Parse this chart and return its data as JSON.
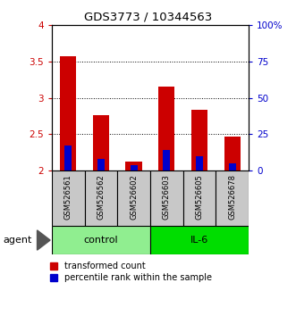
{
  "title": "GDS3773 / 10344563",
  "samples": [
    "GSM526561",
    "GSM526562",
    "GSM526602",
    "GSM526603",
    "GSM526605",
    "GSM526678"
  ],
  "red_bar_top": [
    3.58,
    2.76,
    2.12,
    3.16,
    2.84,
    2.47
  ],
  "red_bar_bottom": [
    2.0,
    2.0,
    2.0,
    2.0,
    2.0,
    2.0
  ],
  "blue_bar_top": [
    2.35,
    2.16,
    2.08,
    2.28,
    2.2,
    2.1
  ],
  "blue_bar_bottom": [
    2.0,
    2.0,
    2.0,
    2.0,
    2.0,
    2.0
  ],
  "ylim": [
    2.0,
    4.0
  ],
  "yticks_left": [
    2.0,
    2.5,
    3.0,
    3.5,
    4.0
  ],
  "yticks_right": [
    0,
    25,
    50,
    75,
    100
  ],
  "ytick_labels_left": [
    "2",
    "2.5",
    "3",
    "3.5",
    "4"
  ],
  "ytick_labels_right": [
    "0",
    "25",
    "50",
    "75",
    "100%"
  ],
  "group_labels": [
    "control",
    "IL-6"
  ],
  "group_colors": [
    "#90ee90",
    "#00dd00"
  ],
  "red_color": "#cc0000",
  "blue_color": "#0000cc",
  "bar_width": 0.5,
  "label_color_left": "#cc0000",
  "label_color_right": "#0000cc",
  "legend_red": "transformed count",
  "legend_blue": "percentile rank within the sample",
  "agent_label": "agent",
  "bgcolor_sample": "#c8c8c8"
}
